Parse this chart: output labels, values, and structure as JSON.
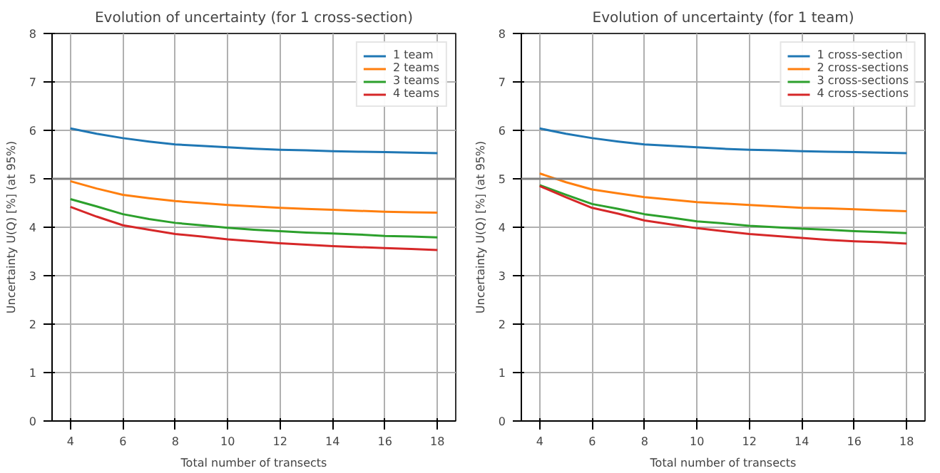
{
  "chart_data": [
    {
      "type": "line",
      "title": "Evolution of uncertainty (for 1 cross-section)",
      "xlabel": "Total number of transects",
      "ylabel": "Uncertainty U(Q) [%] (at 95%)",
      "x": [
        4,
        5,
        6,
        7,
        8,
        9,
        10,
        11,
        12,
        13,
        14,
        15,
        16,
        17,
        18
      ],
      "xlim": [
        3.3,
        18.7
      ],
      "ylim": [
        0,
        8
      ],
      "xticks": [
        4,
        6,
        8,
        10,
        12,
        14,
        16,
        18
      ],
      "yticks": [
        0,
        1,
        2,
        3,
        4,
        5,
        6,
        7,
        8
      ],
      "grid": true,
      "legend": "top right",
      "ref_lines": [
        {
          "axis": "y",
          "value": 5,
          "color": "#808080"
        }
      ],
      "series": [
        {
          "name": "1 team",
          "color": "#1f77b4",
          "values": [
            6.04,
            5.93,
            5.84,
            5.77,
            5.71,
            5.68,
            5.65,
            5.62,
            5.6,
            5.59,
            5.57,
            5.56,
            5.55,
            5.54,
            5.53
          ]
        },
        {
          "name": "2 teams",
          "color": "#ff7f0e",
          "values": [
            4.95,
            4.8,
            4.67,
            4.6,
            4.54,
            4.5,
            4.46,
            4.43,
            4.4,
            4.38,
            4.36,
            4.34,
            4.32,
            4.31,
            4.3
          ]
        },
        {
          "name": "3 teams",
          "color": "#2ca02c",
          "values": [
            4.58,
            4.43,
            4.27,
            4.17,
            4.09,
            4.04,
            3.99,
            3.95,
            3.92,
            3.89,
            3.87,
            3.85,
            3.82,
            3.81,
            3.79
          ]
        },
        {
          "name": "4 teams",
          "color": "#d62728",
          "values": [
            4.42,
            4.22,
            4.04,
            3.95,
            3.86,
            3.81,
            3.75,
            3.71,
            3.67,
            3.64,
            3.61,
            3.59,
            3.57,
            3.55,
            3.53
          ]
        }
      ]
    },
    {
      "type": "line",
      "title": "Evolution of uncertainty (for 1 team)",
      "xlabel": "Total number of transects",
      "ylabel": "Uncertainty U(Q) [%] (at 95%)",
      "x": [
        4,
        5,
        6,
        7,
        8,
        9,
        10,
        11,
        12,
        13,
        14,
        15,
        16,
        17,
        18
      ],
      "xlim": [
        3.3,
        18.7
      ],
      "ylim": [
        0,
        8
      ],
      "xticks": [
        4,
        6,
        8,
        10,
        12,
        14,
        16,
        18
      ],
      "yticks": [
        0,
        1,
        2,
        3,
        4,
        5,
        6,
        7,
        8
      ],
      "grid": true,
      "legend": "top right",
      "ref_lines": [
        {
          "axis": "y",
          "value": 5,
          "color": "#808080"
        }
      ],
      "series": [
        {
          "name": "1 cross-section",
          "color": "#1f77b4",
          "values": [
            6.04,
            5.93,
            5.84,
            5.77,
            5.71,
            5.68,
            5.65,
            5.62,
            5.6,
            5.59,
            5.57,
            5.56,
            5.55,
            5.54,
            5.53
          ]
        },
        {
          "name": "2 cross-sections",
          "color": "#ff7f0e",
          "values": [
            5.11,
            4.93,
            4.78,
            4.7,
            4.62,
            4.57,
            4.52,
            4.49,
            4.46,
            4.43,
            4.4,
            4.39,
            4.37,
            4.35,
            4.33
          ]
        },
        {
          "name": "3 cross-sections",
          "color": "#2ca02c",
          "values": [
            4.87,
            4.67,
            4.48,
            4.38,
            4.27,
            4.2,
            4.12,
            4.08,
            4.03,
            4.0,
            3.97,
            3.95,
            3.92,
            3.9,
            3.88
          ]
        },
        {
          "name": "4 cross-sections",
          "color": "#d62728",
          "values": [
            4.85,
            4.62,
            4.4,
            4.28,
            4.14,
            4.06,
            3.98,
            3.92,
            3.86,
            3.82,
            3.78,
            3.74,
            3.71,
            3.69,
            3.66
          ]
        }
      ]
    }
  ]
}
